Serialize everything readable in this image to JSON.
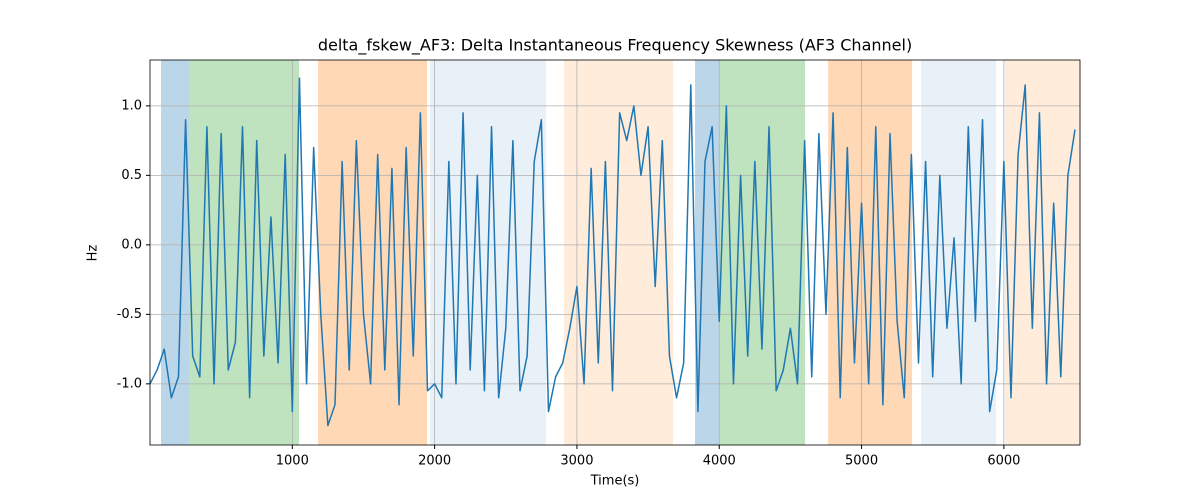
{
  "chart_data": {
    "type": "line",
    "title": "delta_fskew_AF3: Delta Instantaneous Frequency Skewness (AF3 Channel)",
    "x_label": "Time(s)",
    "y_label": "Hz",
    "xlim": [
      0,
      6535
    ],
    "ylim": [
      -1.44,
      1.33
    ],
    "xticks": [
      1000,
      2000,
      3000,
      4000,
      5000,
      6000
    ],
    "yticks": [
      {
        "value": -1,
        "label": "-1.0"
      },
      -0.5,
      {
        "value": 0,
        "label": "0.0"
      },
      0.5,
      {
        "value": 1,
        "label": "1.0"
      }
    ],
    "grid": true,
    "spans": [
      {
        "start": 77,
        "end": 274,
        "color": "#1f77b4",
        "opacity": 0.3
      },
      {
        "start": 274,
        "end": 1047,
        "color": "#2ca02c",
        "opacity": 0.3
      },
      {
        "start": 1181,
        "end": 1947,
        "color": "#ff7f0e",
        "opacity": 0.3
      },
      {
        "start": 1968,
        "end": 2783,
        "color": "#1f77b4",
        "opacity": 0.1
      },
      {
        "start": 2909,
        "end": 3675,
        "color": "#ff7f0e",
        "opacity": 0.15
      },
      {
        "start": 3830,
        "end": 3999,
        "color": "#1f77b4",
        "opacity": 0.3
      },
      {
        "start": 3999,
        "end": 4603,
        "color": "#2ca02c",
        "opacity": 0.3
      },
      {
        "start": 4765,
        "end": 5355,
        "color": "#ff7f0e",
        "opacity": 0.3
      },
      {
        "start": 5418,
        "end": 5945,
        "color": "#1f77b4",
        "opacity": 0.1
      },
      {
        "start": 6008,
        "end": 6535,
        "color": "#ff7f0e",
        "opacity": 0.15
      }
    ],
    "series": [
      {
        "name": "delta_fskew_AF3",
        "color": "#1f77b4",
        "x": [
          0,
          50,
          100,
          150,
          200,
          250,
          300,
          350,
          400,
          450,
          500,
          550,
          600,
          650,
          700,
          750,
          800,
          850,
          900,
          950,
          1000,
          1050,
          1100,
          1150,
          1200,
          1250,
          1300,
          1350,
          1400,
          1450,
          1500,
          1550,
          1600,
          1650,
          1700,
          1750,
          1800,
          1850,
          1900,
          1950,
          2000,
          2050,
          2100,
          2150,
          2200,
          2250,
          2300,
          2350,
          2400,
          2450,
          2500,
          2550,
          2600,
          2650,
          2700,
          2750,
          2800,
          2850,
          2900,
          2950,
          3000,
          3050,
          3100,
          3150,
          3200,
          3250,
          3300,
          3350,
          3400,
          3450,
          3500,
          3550,
          3600,
          3650,
          3700,
          3750,
          3800,
          3850,
          3900,
          3950,
          4000,
          4050,
          4100,
          4150,
          4200,
          4250,
          4300,
          4350,
          4400,
          4450,
          4500,
          4550,
          4600,
          4650,
          4700,
          4750,
          4800,
          4850,
          4900,
          4950,
          5000,
          5050,
          5100,
          5150,
          5200,
          5250,
          5300,
          5350,
          5400,
          5450,
          5500,
          5550,
          5600,
          5650,
          5700,
          5750,
          5800,
          5850,
          5900,
          5950,
          6000,
          6050,
          6100,
          6150,
          6200,
          6250,
          6300,
          6350,
          6400,
          6450,
          6500
        ],
        "values": [
          -1.0,
          -0.9,
          -0.75,
          -1.1,
          -0.95,
          0.9,
          -0.8,
          -0.95,
          0.85,
          -1.0,
          0.8,
          -0.9,
          -0.7,
          0.85,
          -1.1,
          0.75,
          -0.8,
          0.2,
          -0.85,
          0.65,
          -1.2,
          1.2,
          -1.0,
          0.7,
          -0.5,
          -1.3,
          -1.15,
          0.6,
          -0.9,
          0.75,
          -0.5,
          -1.0,
          0.65,
          -0.9,
          0.55,
          -1.15,
          0.7,
          -0.8,
          0.95,
          -1.05,
          -1.0,
          -1.1,
          0.6,
          -1.0,
          0.95,
          -0.9,
          0.5,
          -1.05,
          0.85,
          -1.1,
          -0.6,
          0.75,
          -1.05,
          -0.8,
          0.6,
          0.9,
          -1.2,
          -0.95,
          -0.85,
          -0.6,
          -0.3,
          -1.0,
          0.55,
          -0.85,
          0.6,
          -1.05,
          0.95,
          0.75,
          1.0,
          0.5,
          0.85,
          -0.3,
          0.75,
          -0.8,
          -1.1,
          -0.85,
          1.15,
          -1.2,
          0.6,
          0.85,
          -0.55,
          1.0,
          -1.0,
          0.5,
          -0.8,
          0.6,
          -0.75,
          0.85,
          -1.05,
          -0.9,
          -0.6,
          -1.0,
          0.75,
          -0.95,
          0.8,
          -0.5,
          0.95,
          -1.1,
          0.7,
          -0.85,
          0.3,
          -1.0,
          0.85,
          -1.15,
          0.8,
          -0.55,
          -1.1,
          0.65,
          -0.85,
          0.6,
          -0.95,
          0.5,
          -0.6,
          0.05,
          -1.0,
          0.85,
          -0.55,
          0.9,
          -1.2,
          -0.9,
          0.6,
          -1.1,
          0.65,
          1.15,
          -0.6,
          0.95,
          -1.0,
          0.3,
          -0.95,
          0.5,
          0.83
        ]
      }
    ]
  }
}
